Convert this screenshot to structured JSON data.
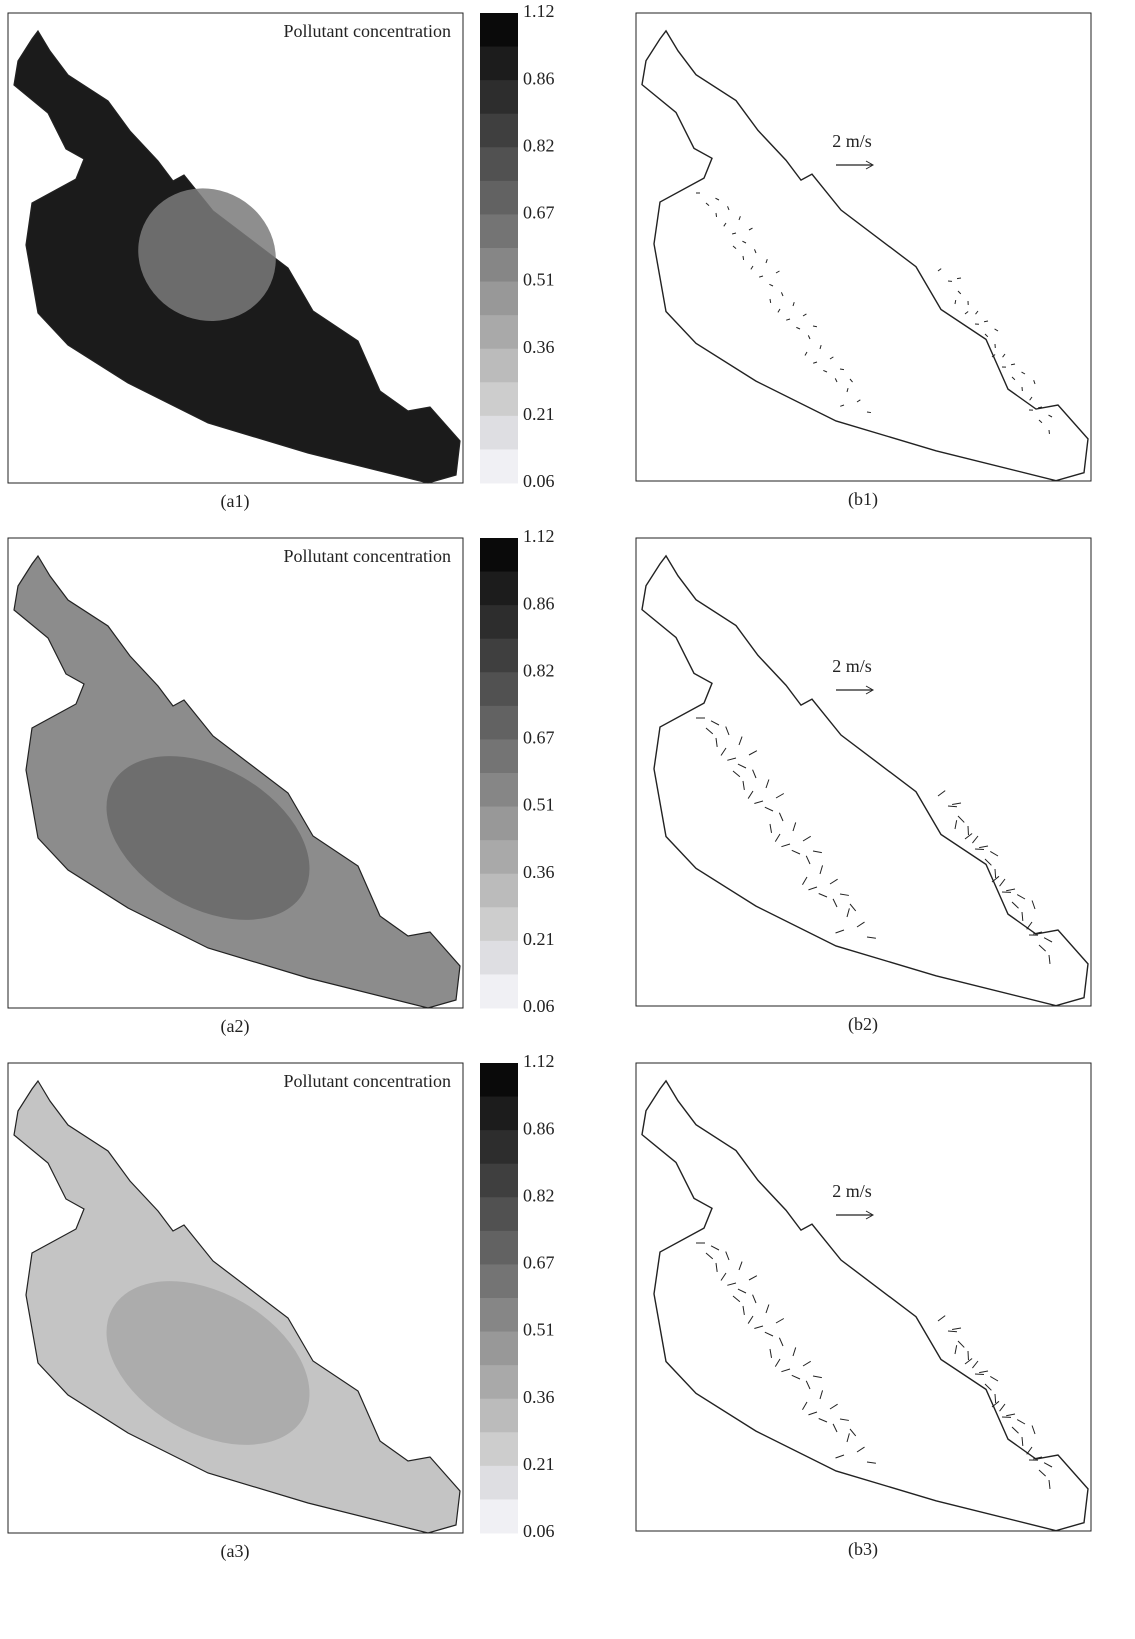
{
  "rows": [
    {
      "map": {
        "title": "Pollutant concentration",
        "label": "(a1)"
      },
      "colorbar_ticks": [
        1.12,
        0.86,
        0.82,
        0.67,
        0.51,
        0.36,
        0.21,
        0.06
      ],
      "vectors": {
        "scale_label": "2 m/s",
        "label": "(b1)"
      }
    },
    {
      "map": {
        "title": "Pollutant concentration",
        "label": "(a2)"
      },
      "colorbar_ticks": [
        1.12,
        0.86,
        0.82,
        0.67,
        0.51,
        0.36,
        0.21,
        0.06
      ],
      "vectors": {
        "scale_label": "2 m/s",
        "label": "(b2)"
      }
    },
    {
      "map": {
        "title": "Pollutant concentration",
        "label": "(a3)"
      },
      "colorbar_ticks": [
        1.12,
        0.86,
        0.82,
        0.67,
        0.51,
        0.36,
        0.21,
        0.06
      ],
      "vectors": {
        "scale_label": "2 m/s",
        "label": "(b3)"
      }
    }
  ]
}
